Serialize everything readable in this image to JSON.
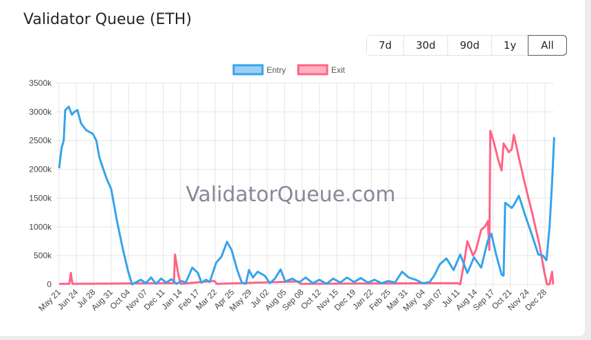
{
  "header": {
    "title": "Validator Queue (ETH)"
  },
  "range_buttons": [
    {
      "label": "7d"
    },
    {
      "label": "30d"
    },
    {
      "label": "90d"
    },
    {
      "label": "1y"
    },
    {
      "label": "All",
      "active": true
    }
  ],
  "watermark": "ValidatorQueue.com",
  "chart_data": {
    "type": "line",
    "legend_position": "top",
    "grid": true,
    "ylim": [
      0,
      3500
    ],
    "y_ticks": [
      "0",
      "500k",
      "1000k",
      "1500k",
      "2000k",
      "2500k",
      "3000k",
      "3500k"
    ],
    "x_range": [
      "2023-05-21",
      "2026-01-15"
    ],
    "x_ticks": [
      "May 21",
      "Jun 24",
      "Jul 28",
      "Aug 31",
      "Oct 04",
      "Nov 07",
      "Dec 11",
      "Jan 14",
      "Feb 17",
      "Mar 22",
      "Apr 25",
      "May 29",
      "Jul 02",
      "Aug 05",
      "Sep 08",
      "Oct 12",
      "Nov 15",
      "Dec 19",
      "Jan 22",
      "Feb 25",
      "Mar 31",
      "May 04",
      "Jun 07",
      "Jul 11",
      "Aug 14",
      "Sep 17",
      "Oct 21",
      "Nov 24",
      "Dec 28"
    ],
    "series": [
      {
        "name": "Entry",
        "color": "#36a2eb",
        "points": [
          [
            "2023-05-21",
            2020
          ],
          [
            "2023-05-26",
            2380
          ],
          [
            "2023-05-30",
            2500
          ],
          [
            "2023-06-02",
            3030
          ],
          [
            "2023-06-09",
            3090
          ],
          [
            "2023-06-15",
            2950
          ],
          [
            "2023-06-20",
            3000
          ],
          [
            "2023-06-26",
            3030
          ],
          [
            "2023-07-03",
            2800
          ],
          [
            "2023-07-13",
            2680
          ],
          [
            "2023-07-26",
            2620
          ],
          [
            "2023-08-02",
            2500
          ],
          [
            "2023-08-08",
            2200
          ],
          [
            "2023-08-22",
            1840
          ],
          [
            "2023-08-31",
            1660
          ],
          [
            "2023-09-11",
            1120
          ],
          [
            "2023-09-22",
            650
          ],
          [
            "2023-10-03",
            230
          ],
          [
            "2023-10-11",
            0
          ],
          [
            "2023-10-28",
            80
          ],
          [
            "2023-11-07",
            20
          ],
          [
            "2023-11-17",
            120
          ],
          [
            "2023-11-27",
            10
          ],
          [
            "2023-12-07",
            100
          ],
          [
            "2023-12-17",
            30
          ],
          [
            "2023-12-27",
            90
          ],
          [
            "2024-01-06",
            10
          ],
          [
            "2024-01-16",
            60
          ],
          [
            "2024-01-24",
            30
          ],
          [
            "2024-02-06",
            290
          ],
          [
            "2024-02-17",
            200
          ],
          [
            "2024-02-24",
            30
          ],
          [
            "2024-03-04",
            80
          ],
          [
            "2024-03-11",
            40
          ],
          [
            "2024-03-24",
            380
          ],
          [
            "2024-04-03",
            480
          ],
          [
            "2024-04-14",
            740
          ],
          [
            "2024-04-23",
            600
          ],
          [
            "2024-05-04",
            250
          ],
          [
            "2024-05-13",
            30
          ],
          [
            "2024-05-21",
            10
          ],
          [
            "2024-05-27",
            250
          ],
          [
            "2024-06-04",
            120
          ],
          [
            "2024-06-13",
            220
          ],
          [
            "2024-06-27",
            150
          ],
          [
            "2024-07-07",
            20
          ],
          [
            "2024-07-17",
            100
          ],
          [
            "2024-07-28",
            260
          ],
          [
            "2024-08-06",
            50
          ],
          [
            "2024-08-20",
            100
          ],
          [
            "2024-09-02",
            30
          ],
          [
            "2024-09-15",
            120
          ],
          [
            "2024-09-29",
            20
          ],
          [
            "2024-10-12",
            80
          ],
          [
            "2024-10-26",
            10
          ],
          [
            "2024-11-08",
            100
          ],
          [
            "2024-11-22",
            30
          ],
          [
            "2024-12-05",
            120
          ],
          [
            "2024-12-19",
            40
          ],
          [
            "2025-01-01",
            110
          ],
          [
            "2025-01-15",
            30
          ],
          [
            "2025-01-28",
            80
          ],
          [
            "2025-02-11",
            20
          ],
          [
            "2025-02-24",
            60
          ],
          [
            "2025-03-09",
            30
          ],
          [
            "2025-03-23",
            220
          ],
          [
            "2025-04-05",
            120
          ],
          [
            "2025-04-19",
            80
          ],
          [
            "2025-05-02",
            20
          ],
          [
            "2025-05-16",
            40
          ],
          [
            "2025-05-25",
            150
          ],
          [
            "2025-06-05",
            350
          ],
          [
            "2025-06-18",
            450
          ],
          [
            "2025-07-02",
            250
          ],
          [
            "2025-07-15",
            520
          ],
          [
            "2025-07-29",
            200
          ],
          [
            "2025-08-11",
            470
          ],
          [
            "2025-08-25",
            290
          ],
          [
            "2025-09-07",
            760
          ],
          [
            "2025-09-14",
            880
          ],
          [
            "2025-09-23",
            530
          ],
          [
            "2025-10-04",
            170
          ],
          [
            "2025-10-08",
            150
          ],
          [
            "2025-10-11",
            1420
          ],
          [
            "2025-10-24",
            1330
          ],
          [
            "2025-10-28",
            1380
          ],
          [
            "2025-11-07",
            1540
          ],
          [
            "2025-11-20",
            1180
          ],
          [
            "2025-12-04",
            820
          ],
          [
            "2025-12-15",
            520
          ],
          [
            "2025-12-24",
            500
          ],
          [
            "2025-12-31",
            420
          ],
          [
            "2026-01-06",
            1000
          ],
          [
            "2026-01-11",
            1780
          ],
          [
            "2026-01-15",
            2560
          ]
        ]
      },
      {
        "name": "Exit",
        "color": "#ff6384",
        "points": [
          [
            "2023-05-21",
            10
          ],
          [
            "2023-06-10",
            10
          ],
          [
            "2023-06-13",
            200
          ],
          [
            "2023-06-16",
            10
          ],
          [
            "2024-01-01",
            20
          ],
          [
            "2024-01-03",
            520
          ],
          [
            "2024-01-10",
            150
          ],
          [
            "2024-01-14",
            10
          ],
          [
            "2024-03-20",
            60
          ],
          [
            "2024-03-25",
            10
          ],
          [
            "2024-09-01",
            50
          ],
          [
            "2024-09-05",
            10
          ],
          [
            "2025-07-10",
            20
          ],
          [
            "2025-07-15",
            0
          ],
          [
            "2025-07-22",
            350
          ],
          [
            "2025-07-29",
            750
          ],
          [
            "2025-08-09",
            500
          ],
          [
            "2025-08-15",
            600
          ],
          [
            "2025-08-25",
            950
          ],
          [
            "2025-09-01",
            1000
          ],
          [
            "2025-09-07",
            1100
          ],
          [
            "2025-09-10",
            600
          ],
          [
            "2025-09-12",
            2670
          ],
          [
            "2025-09-18",
            2500
          ],
          [
            "2025-09-28",
            2150
          ],
          [
            "2025-10-04",
            1980
          ],
          [
            "2025-10-08",
            2450
          ],
          [
            "2025-10-18",
            2300
          ],
          [
            "2025-10-24",
            2350
          ],
          [
            "2025-10-28",
            2600
          ],
          [
            "2025-11-07",
            2200
          ],
          [
            "2025-11-20",
            1700
          ],
          [
            "2025-12-04",
            1200
          ],
          [
            "2025-12-17",
            700
          ],
          [
            "2025-12-27",
            200
          ],
          [
            "2026-01-01",
            0
          ],
          [
            "2026-01-06",
            0
          ],
          [
            "2026-01-11",
            220
          ],
          [
            "2026-01-13",
            0
          ]
        ]
      }
    ]
  }
}
